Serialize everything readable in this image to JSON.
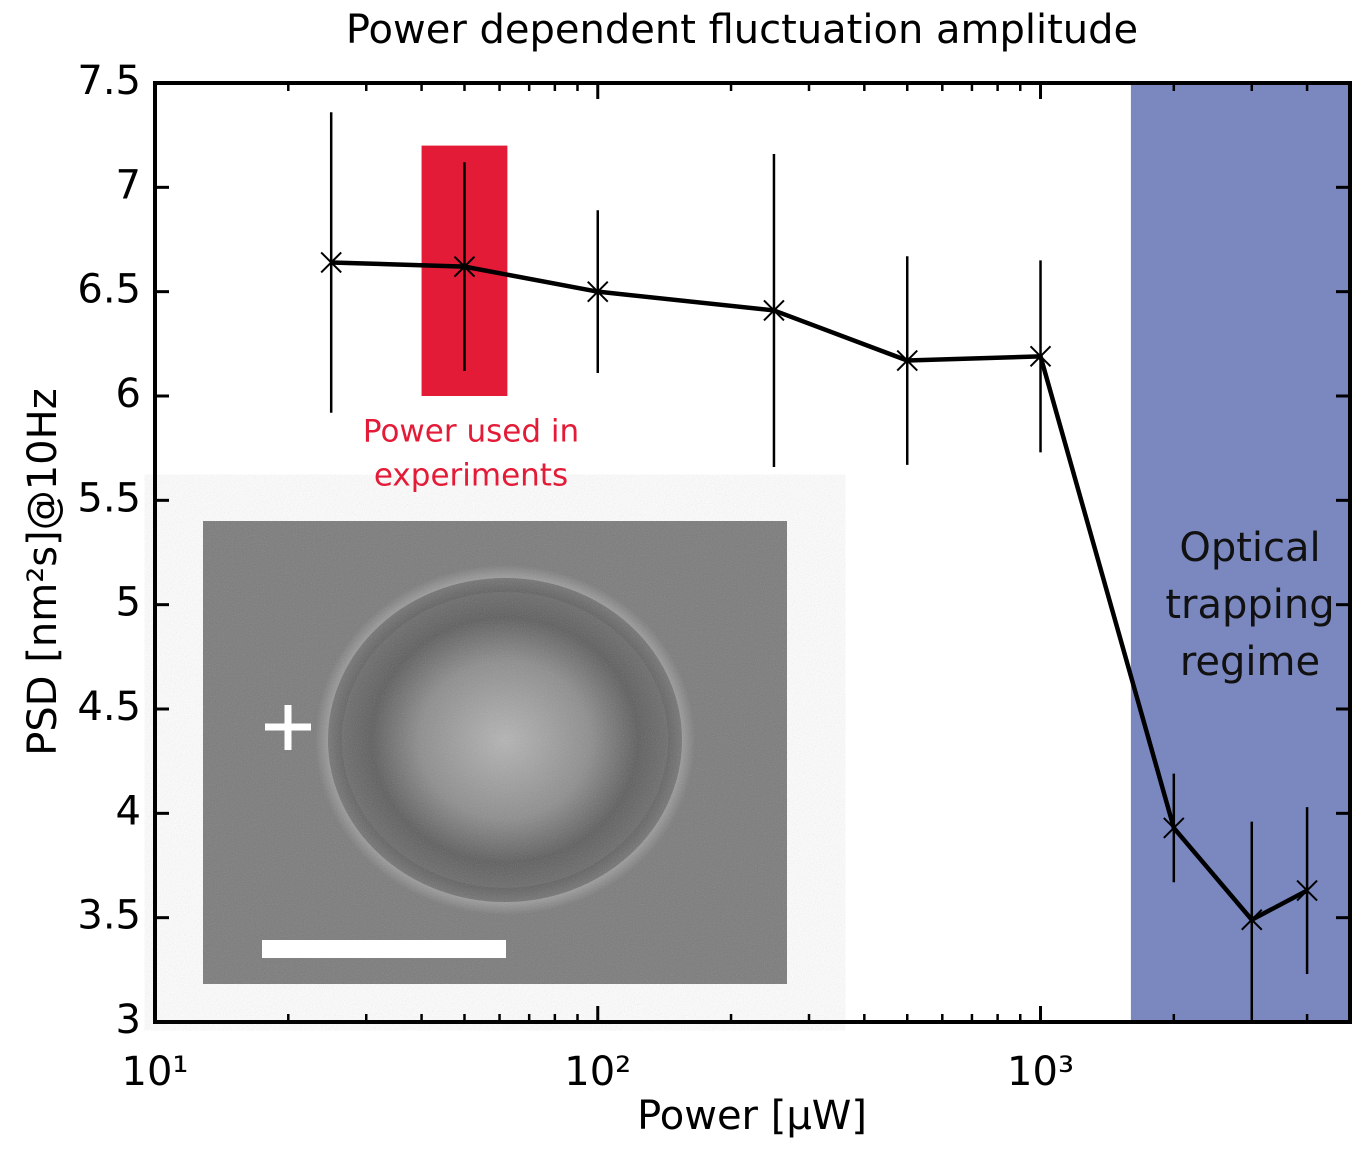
{
  "chart_data": {
    "type": "line",
    "title": "Power dependent fluctuation amplitude",
    "xlabel": "Power [μW]",
    "ylabel": "PSD [nm²s]@10Hz",
    "xscale": "log",
    "xlim": [
      10,
      5000
    ],
    "ylim": [
      3,
      7.5
    ],
    "xticks": [
      {
        "value": 10,
        "label": "10¹"
      },
      {
        "value": 100,
        "label": "10²"
      },
      {
        "value": 1000,
        "label": "10³"
      }
    ],
    "x_minor_ticks": [
      20,
      30,
      40,
      50,
      60,
      70,
      80,
      90,
      200,
      300,
      400,
      500,
      600,
      700,
      800,
      900,
      2000,
      3000,
      4000
    ],
    "yticks": [
      3,
      3.5,
      4,
      4.5,
      5,
      5.5,
      6,
      6.5,
      7,
      7.5
    ],
    "grid": false,
    "x": [
      25,
      50,
      100,
      250,
      500,
      1000,
      2000,
      3000,
      4000
    ],
    "series": [
      {
        "color": "#000000",
        "marker": "x",
        "values": [
          6.64,
          6.62,
          6.5,
          6.41,
          6.17,
          6.19,
          3.93,
          3.49,
          3.63
        ],
        "errors": [
          0.72,
          0.5,
          0.39,
          0.75,
          0.5,
          0.46,
          0.26,
          0.47,
          0.4
        ]
      }
    ],
    "regions": [
      {
        "x": [
          40,
          62.5
        ],
        "y": [
          6,
          7.2
        ],
        "color": "#e31b37"
      },
      {
        "x": [
          1600,
          5000
        ],
        "y": [
          3,
          7.5
        ],
        "color": "#7b88c0"
      }
    ],
    "annotations": [
      {
        "lines": [
          "Power used in",
          "experiments"
        ],
        "color": "#e31b37"
      },
      {
        "lines": [
          "Optical",
          "trapping",
          "regime"
        ],
        "color": "#111111"
      }
    ]
  }
}
